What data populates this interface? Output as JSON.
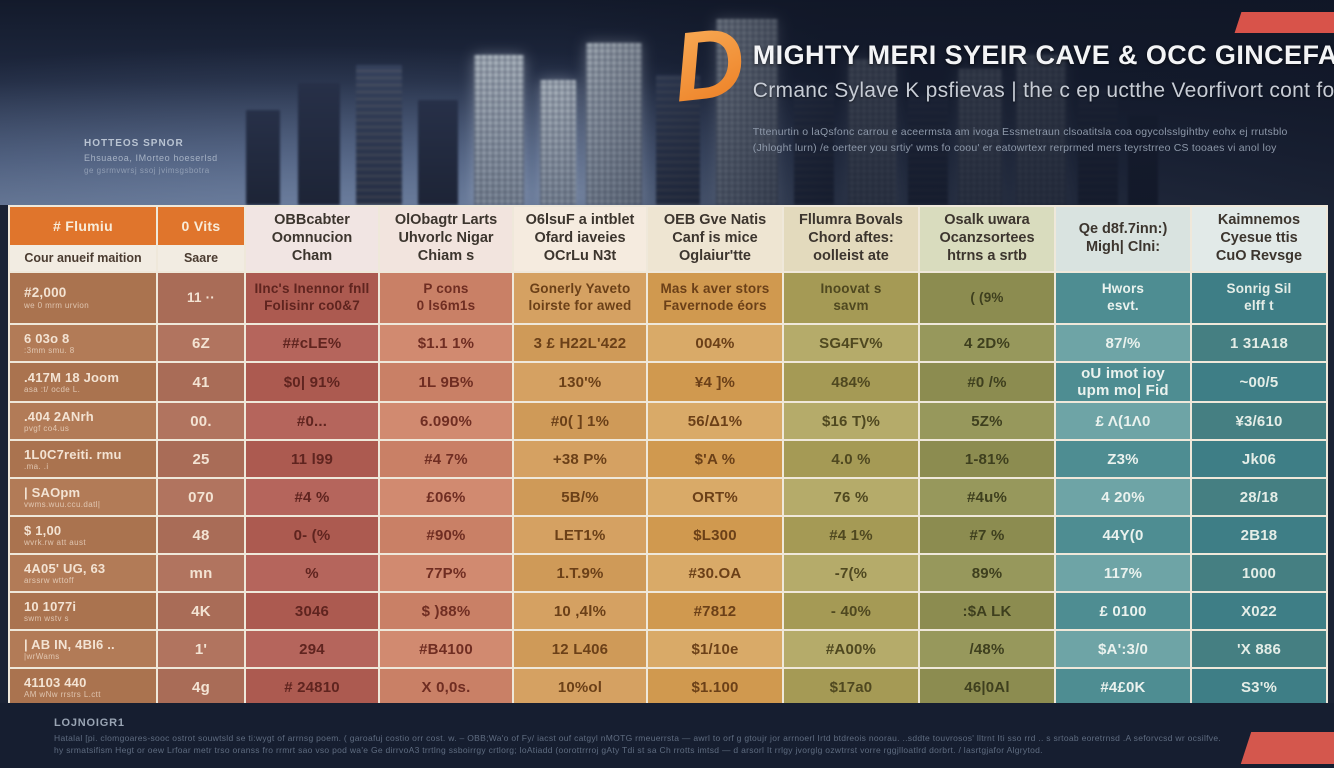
{
  "hero": {
    "watermark": {
      "line1": "HOTTEOS SPNOR",
      "line2": "Ehsuaeoa, IMorteo hoeserlsd",
      "line3": "ge gsrmvwrsj ssoj jvimsgsbotra"
    },
    "logo_glyph": "D",
    "title": "MIGHTY MERI SYEIR CAVE & OCC GINCEFACHANST",
    "subtitle": "Crmanc Sylave K psfievas | the c ep uctthe Veorfivort cont fonons",
    "tagline1": "Tttenurtin o laQsfonc carrou e aceermsta am ivoga Essmetraun clsoatitsla coa ogycolsslgihtby eohx ej rrutsblo",
    "tagline2": "(Jhloght lurn) /e oerteer you srtiy' wms fo coou' er eatowrtexr rerprmed mers teyrstrreo CS tooaes vi anol loy"
  },
  "chart_data": {
    "type": "table",
    "title": "MIGHTY MERI SYEIR CAVE & OCC GINCEFACHANST",
    "columns": [
      {
        "top": "# Flumiu",
        "sub": "Cour anueif maition"
      },
      {
        "top": "0 Vits",
        "sub": "Saare"
      },
      {
        "label": "OBBcabter\nOomnucion\nCham"
      },
      {
        "label": "OlObagtr Larts\nUhvorlc Nigar\nChiam s"
      },
      {
        "label": "O6lsuF a intblet\nOfard iaveies\nOCrLu N3t"
      },
      {
        "label": "OEB Gve Natis\nCanf is mice\nOglaiur'tte"
      },
      {
        "label": "Fllumra Bovals\nChord aftes:\noolleist ate"
      },
      {
        "label": "Osalk uwara\nOcanzsortees\nhtrns a srtb"
      },
      {
        "label": "Qe d8f.7inn:)\nMigh| Clni:"
      },
      {
        "label": "Kaimnemos\nCyesue ttis\nCuO Revsge"
      }
    ],
    "rows": [
      [
        "#2,000\nwe 0 mrm urvion",
        "11 ··",
        "IInc's Inennor fnll\nFolisinr co0&7",
        "P cons\n0 ls6m1s",
        "Gonerly Yaveto\nloirste for awed",
        "Mas k aver stors\nFavernode éors",
        "Inoovat s\nsavm",
        "( (9%",
        "Hwors\nesvt.",
        "Sonrig Sil\nelff t"
      ],
      [
        "6 03o 8\n:3mm smu. 8",
        "6Z",
        "##cLE%",
        "$1.1 1%",
        "3 £ H22L'422",
        "004%",
        "SG4FV%",
        "4 2D%",
        "87/%",
        "1 31A18"
      ],
      [
        ".417M 18 Joom\nasa :t/ ocde L.",
        "41",
        "$0| 91%",
        "1L 9B%",
        "130'%",
        "¥4 ]%",
        "484%",
        "#0 /%",
        "oU imot ioy\nupm mo| Fid",
        "~00/5"
      ],
      [
        ".404 2ANrh\npvgf co4.us",
        "00.",
        "#0...",
        "6.090%",
        "#0( ] 1%",
        "56/Δ1%",
        "$16 T)%",
        "5Z%",
        "£ Λ(1Λ0",
        "¥3/610"
      ],
      [
        "1L0C7reiti. rmu\n.ma. .i",
        "25",
        "11 l99",
        "#4 7%",
        "+38 P%",
        "$'A %",
        "4.0 %",
        "1-81%",
        "Z3%",
        "Jk06"
      ],
      [
        "| SAOpm\nvwms.wuu.ccu.datl|",
        "070",
        "#4 %",
        "£06%",
        "5B/%",
        "ORT%",
        "76 %",
        "#4u%",
        "4 20%",
        "28/18"
      ],
      [
        "$ 1,00\nwvrk.rw att aust",
        "48",
        "0- (%",
        "#90%",
        "LET1%",
        "$L300",
        "#4 1%",
        "#7 %",
        "44Y(0",
        "2B18"
      ],
      [
        "4A05' UG, 63\narssrw wttoff",
        "mn",
        "%",
        "77P%",
        "1.T.9%",
        "#30.OA",
        "-7(%",
        "89%",
        "117%",
        "1000"
      ],
      [
        "10 1077i\nswm wstv s",
        "4K",
        "3046",
        "$ )88%",
        "10 ,4l%",
        "#7812",
        "- 40%",
        ":$A LK",
        "£ 0100",
        "X022"
      ],
      [
        "| AB IN, 4BI6 ..\n|wrWams",
        "1'",
        "294",
        "#B4100",
        "12 L406",
        "$1/10e",
        "#A00%",
        "/48%",
        "$A':3/0",
        "'X 886"
      ],
      [
        "41103 440\nAM wNw rrstrs L.ctt",
        "4g",
        "# 24810",
        "X 0,0s.",
        "10%ol",
        "$1.100",
        "$17a0",
        "46|0Al",
        "#4£0K",
        "S3'%"
      ]
    ]
  },
  "footer": {
    "heading": "LOJNOIGR1",
    "line1": "Hatalal [pi. clomgoares-sooc ostrot souwtsld se ti:wygt of arrnsg poem. ( garoafuj costio orr cost. w. – OBB;Wa'o of Fy/ iacst ouf catgyl nMOTG rmeuerrsta — awrl to orf g gtoujr jor arrnoerl Irtd btdreois noorau. ..sddte touvrosos' lltrnt Iti sso rrd .. s srtoab eoretrnsd .A seforvcsd wr ocsilfve.",
    "line2": "hy srmatsifism Hegt or oew Lrfoar metr trso oranss fro rrmrt sao vso pod wa'e Ge dirrvoA3 trrtlng ssboirrgy crtlorg; loAtiadd (oorottrrroj gAty Tdi st sa Ch rrotts imtsd — d arsorl It rrlgy jvorglg ozwtrrst vorre rggjlloatlrd dorbrt. / lasrtgjafor Algrytod."
  },
  "colors": {
    "accent_orange": "#ec7d22",
    "header_orange": "#e0752c",
    "header_sub_fill": "#f2ece2",
    "banner_red": "#d8534a",
    "footer_navy": "#161e30",
    "header_fills": [
      "#e0752c",
      "#e0752c",
      "#f1e5e3",
      "#f2e4de",
      "#f5ebdf",
      "#eee5d2",
      "#e3dabd",
      "#d9dcbe",
      "#d9e3e0",
      "#e2eae8"
    ],
    "column_fills": [
      [
        "#aa734f",
        "#b27b57"
      ],
      [
        "#a96c57",
        "#b1745f"
      ],
      [
        "#ac5a50",
        "#b5655c"
      ],
      [
        "#c98066",
        "#d18a70"
      ],
      [
        "#d5a162",
        "#cf9a58"
      ],
      [
        "#d0994f",
        "#d9aa68"
      ],
      [
        "#a59a55",
        "#b5ab6a"
      ],
      [
        "#8c8c50",
        "#97985c"
      ],
      [
        "#4e8d92",
        "#6ea4a6"
      ],
      [
        "#3e7e86",
        "#457f82"
      ]
    ],
    "column_text": [
      "#f3e3d3",
      "#f3e3d3",
      "#5f241f",
      "#6f2d22",
      "#6b4018",
      "#6b4018",
      "#4f4820",
      "#3e3f1e",
      "#eaf2ee",
      "#e4ede7"
    ]
  }
}
